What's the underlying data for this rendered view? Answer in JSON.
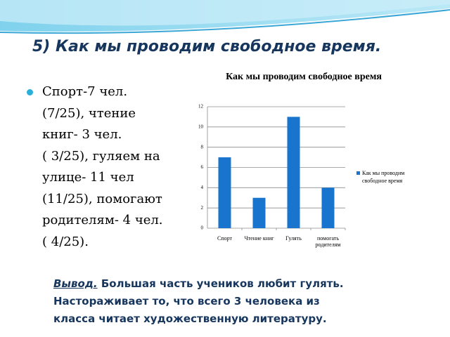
{
  "slide_title": "5) Как мы проводим свободное время.",
  "bullet_lines": [
    "Спорт-7 чел.",
    "(7/25), чтение",
    "книг- 3 чел.",
    "( 3/25), гуляем на",
    "улице- 11 чел",
    "(11/25), помогают",
    "родителям- 4 чел.",
    "( 4/25)."
  ],
  "conclusion": {
    "label": "Вывод.",
    "lines": [
      "Большая часть учеников любит гулять.",
      "Настораживает то, что всего 3 человека из",
      "класса читает художественную литературу."
    ]
  },
  "chart_data": {
    "type": "bar",
    "title": "Как мы проводим свободное время",
    "categories": [
      "Спорт",
      "Чтение книг",
      "Гулять",
      "помогать родителям"
    ],
    "series": [
      {
        "name": "Как мы проводим свободное время",
        "color": "#1874cd",
        "values": [
          7,
          3,
          11,
          4
        ]
      }
    ],
    "ylim": [
      0,
      12
    ],
    "yticks": [
      0,
      2,
      4,
      6,
      8,
      10,
      12
    ],
    "grid": true,
    "legend": "right"
  }
}
